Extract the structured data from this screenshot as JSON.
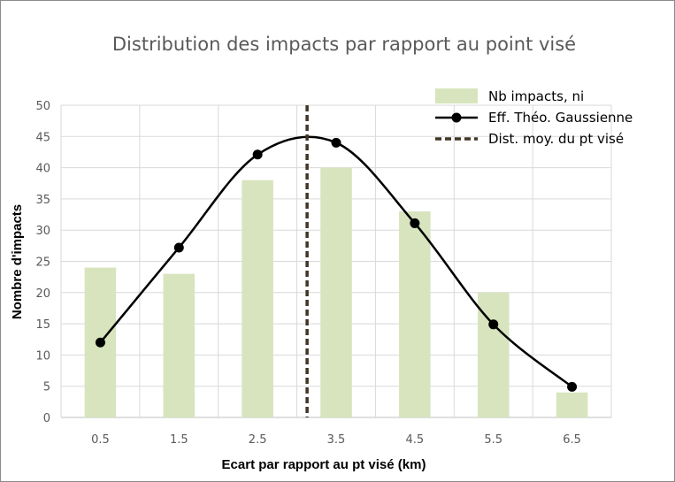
{
  "chart_data": {
    "type": "bar",
    "title": "Distribution des impacts par rapport au point visé",
    "xlabel": "Ecart par rapport au pt visé (km)",
    "ylabel": "Nombre d'impacts",
    "categories": [
      "0.5",
      "1.5",
      "2.5",
      "3.5",
      "4.5",
      "5.5",
      "6.5"
    ],
    "ylim": [
      0,
      50
    ],
    "yticks": [
      "0",
      "5",
      "10",
      "15",
      "20",
      "25",
      "30",
      "35",
      "40",
      "45",
      "50"
    ],
    "grid": true,
    "legend_position": "top-right",
    "series": [
      {
        "name": "Nb impacts, ni",
        "kind": "bar",
        "color": "#d7e4bd",
        "values": [
          24,
          23,
          38,
          40,
          33,
          20,
          4
        ]
      },
      {
        "name": "Eff. Théo. Gaussienne",
        "kind": "line-smooth-markers",
        "color": "#000000",
        "values": [
          12,
          27.2,
          42.1,
          44,
          31.1,
          14.9,
          4.9
        ]
      },
      {
        "name": "Dist. moy. du pt visé",
        "kind": "vertical-dashed-line",
        "color": "#403527",
        "x": 3.13
      }
    ]
  }
}
